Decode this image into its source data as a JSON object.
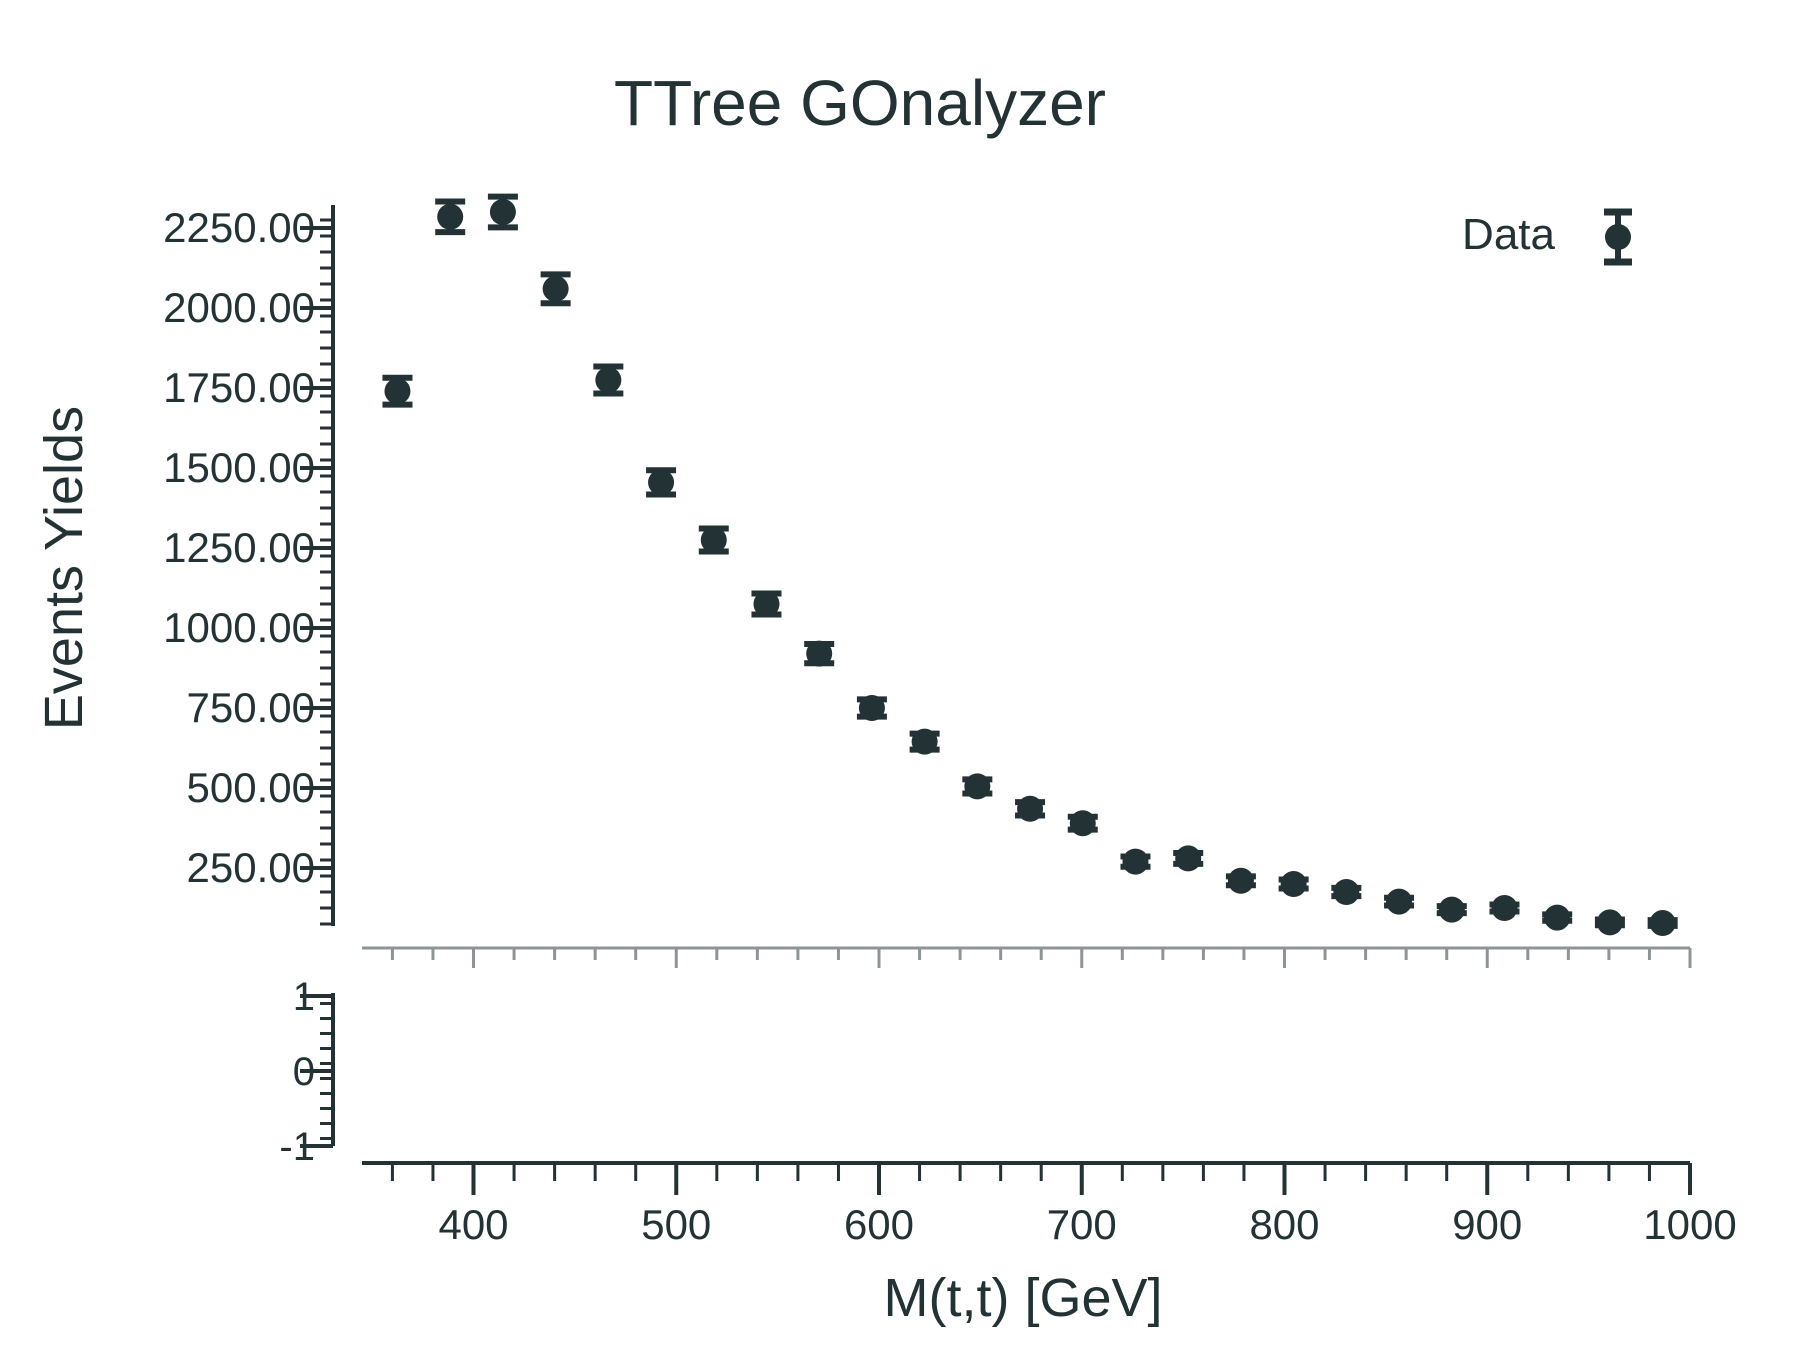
{
  "chart_data": {
    "type": "scatter",
    "title": "TTree GOnalyzer",
    "xlabel": "M(t,t) [GeV]",
    "ylabel": "Events Yields",
    "xlim": [
      345,
      1000
    ],
    "ylim": [
      10,
      2350
    ],
    "ratio_ylim": [
      -1.2,
      1.2
    ],
    "x_ticks": [
      "400",
      "500",
      "600",
      "700",
      "800",
      "900",
      "1000"
    ],
    "y_ticks": [
      "250.00",
      "500.00",
      "750.00",
      "1000.00",
      "1250.00",
      "1500.00",
      "1750.00",
      "2000.00",
      "2250.00"
    ],
    "ratio_y_ticks": [
      "1",
      "0",
      "-1"
    ],
    "legend": {
      "label": "Data",
      "position": "top-right"
    },
    "colors": {
      "ink": "#233234",
      "axis_gray": "#8e9597"
    },
    "grid": false,
    "series": [
      {
        "name": "Data",
        "x": [
          362.5,
          388.5,
          414.5,
          440.5,
          466.5,
          492.5,
          518.5,
          544.5,
          570.5,
          596.5,
          622.5,
          648.5,
          674.5,
          700.5,
          726.5,
          752.5,
          778.5,
          804.5,
          830.5,
          856.5,
          882.5,
          908.5,
          934.5,
          960.5,
          986.5
        ],
        "y": [
          1740,
          2285,
          2300,
          2060,
          1775,
          1455,
          1275,
          1075,
          920,
          750,
          645,
          505,
          435,
          390,
          270,
          280,
          210,
          200,
          175,
          145,
          120,
          125,
          95,
          80,
          78
        ],
        "yerr": [
          42,
          48,
          48,
          45,
          42,
          38,
          36,
          33,
          30,
          27,
          25,
          22,
          21,
          20,
          16,
          17,
          14,
          14,
          13,
          12,
          11,
          11,
          10,
          9,
          9
        ]
      }
    ]
  }
}
